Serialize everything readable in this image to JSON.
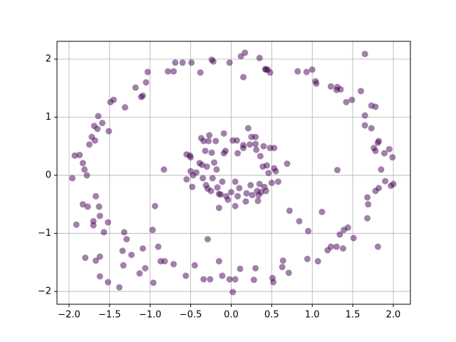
{
  "chart_data": {
    "type": "scatter",
    "color": "#440154",
    "opacity": 0.5,
    "grid": true,
    "xlim": [
      -2.149,
      2.211
    ],
    "ylim": [
      -2.22,
      2.307
    ],
    "xticks": [
      {
        "value": -2,
        "label": "−2.0"
      },
      {
        "value": -1.5,
        "label": "−1.5"
      },
      {
        "value": -1,
        "label": "−1.0"
      },
      {
        "value": -0.5,
        "label": "−0.5"
      },
      {
        "value": 0,
        "label": "0.0"
      },
      {
        "value": 0.5,
        "label": "0.5"
      },
      {
        "value": 1,
        "label": "1.0"
      },
      {
        "value": 1.5,
        "label": "1.5"
      },
      {
        "value": 2,
        "label": "2.0"
      }
    ],
    "yticks": [
      {
        "value": -2,
        "label": "−2"
      },
      {
        "value": -1,
        "label": "−1"
      },
      0,
      1,
      2
    ],
    "x": [
      -1.96,
      -1.93,
      -1.87,
      -1.91,
      -1.83,
      -1.81,
      -1.78,
      -1.83,
      -1.77,
      -1.8,
      -1.75,
      -1.72,
      -1.69,
      -1.65,
      -1.64,
      -1.68,
      -1.59,
      -1.51,
      -1.67,
      -1.63,
      -1.7,
      -1.7,
      -1.62,
      -1.57,
      -1.67,
      -1.62,
      -1.52,
      -1.62,
      -1.52,
      -1.49,
      -1.45,
      -1.31,
      -1.38,
      -1.32,
      -1.29,
      -1.34,
      -1.33,
      -1.23,
      -1.18,
      -1.11,
      -1.09,
      -1.13,
      -1.09,
      -1.06,
      -1.05,
      -1.03,
      -0.94,
      -0.97,
      -0.96,
      -0.9,
      -0.87,
      -0.82,
      -0.78,
      -0.71,
      -0.69,
      -0.71,
      -0.6,
      -0.56,
      -0.45,
      -0.49,
      -0.38,
      -0.34,
      -0.29,
      -0.26,
      -0.24,
      -0.22,
      -0.15,
      -0.11,
      -0.02,
      -0.02,
      0.05,
      0.02,
      0.12,
      0.17,
      0.15,
      0.11,
      0.28,
      0.3,
      0.35,
      0.42,
      0.45,
      0.48,
      0.43,
      0.51,
      0.52,
      0.63,
      0.64,
      0.71,
      0.72,
      0.82,
      0.84,
      0.93,
      0.94,
      0.95,
      1.0,
      1.04,
      1.05,
      1.07,
      1.12,
      1.19,
      1.23,
      1.23,
      1.3,
      1.31,
      1.31,
      1.3,
      1.35,
      1.34,
      1.38,
      1.39,
      1.42,
      1.44,
      1.49,
      1.51,
      1.6,
      1.65,
      1.65,
      1.65,
      1.68,
      1.69,
      1.68,
      1.73,
      1.73,
      1.78,
      1.76,
      1.78,
      1.78,
      1.82,
      1.82,
      1.81,
      1.81,
      1.85,
      1.89,
      1.9,
      1.95,
      1.99,
      1.97,
      2.0,
      -0.55,
      -0.51,
      -0.5,
      -0.55,
      -0.5,
      -0.48,
      -0.47,
      -0.43,
      -0.39,
      -0.37,
      -0.36,
      -0.34,
      -0.35,
      -0.32,
      -0.31,
      -0.3,
      -0.29,
      -0.28,
      -0.27,
      -0.25,
      -0.24,
      -0.23,
      -0.19,
      -0.17,
      -0.15,
      -0.15,
      -0.13,
      -0.11,
      -0.09,
      -0.07,
      -0.09,
      -0.06,
      -0.04,
      0.0,
      0.02,
      0.05,
      0.05,
      0.07,
      0.08,
      0.08,
      0.1,
      0.15,
      0.15,
      0.18,
      0.19,
      0.21,
      0.23,
      0.24,
      0.26,
      0.3,
      0.3,
      0.31,
      0.32,
      0.33,
      0.34,
      0.35,
      0.36,
      0.37,
      0.39,
      0.4,
      0.41,
      0.43,
      0.44,
      0.46,
      0.48,
      0.5,
      0.53,
      0.53,
      0.55,
      0.58,
      0.69,
      -0.83,
      -0.21,
      -0.18,
      0.25
    ],
    "values": [
      -0.05,
      0.34,
      0.35,
      -0.85,
      0.21,
      0.1,
      0.0,
      -0.5,
      -0.54,
      -1.42,
      0.53,
      0.66,
      0.85,
      0.8,
      1.02,
      0.6,
      0.9,
      0.76,
      -0.36,
      -0.54,
      -0.79,
      -0.86,
      -0.7,
      -0.98,
      -1.47,
      -1.4,
      -0.81,
      -1.74,
      -1.84,
      1.26,
      1.3,
      1.17,
      -1.93,
      -0.98,
      -1.1,
      -1.3,
      -1.55,
      -1.37,
      1.51,
      1.35,
      1.37,
      -1.69,
      -1.26,
      -1.6,
      1.6,
      1.78,
      -0.53,
      -0.94,
      -1.85,
      -1.23,
      -1.48,
      -1.48,
      1.79,
      1.79,
      1.94,
      -1.53,
      1.94,
      -1.73,
      -1.55,
      1.94,
      1.77,
      -1.79,
      -1.1,
      -1.79,
      1.99,
      1.96,
      -1.48,
      -1.73,
      1.94,
      -1.79,
      -1.79,
      -2.01,
      2.05,
      2.11,
      1.69,
      -1.61,
      -1.8,
      -1.6,
      2.02,
      1.83,
      1.82,
      1.77,
      1.82,
      -1.77,
      -1.84,
      -1.58,
      -1.47,
      -1.68,
      -0.61,
      1.79,
      -0.79,
      1.78,
      -1.44,
      -0.96,
      1.82,
      1.62,
      1.58,
      -1.48,
      -0.63,
      -1.29,
      1.53,
      -1.23,
      1.47,
      1.52,
      0.09,
      -1.23,
      1.48,
      -1.02,
      -1.26,
      -0.94,
      1.26,
      -0.9,
      1.3,
      -1.08,
      1.45,
      2.09,
      1.03,
      0.86,
      -0.38,
      -0.5,
      -0.74,
      0.81,
      1.2,
      1.18,
      0.47,
      0.42,
      -0.27,
      -0.22,
      0.59,
      0.56,
      -1.23,
      0.1,
      0.38,
      -0.1,
      0.45,
      0.31,
      -0.18,
      -0.15,
      0.36,
      0.34,
      0.31,
      -0.07,
      0.07,
      -0.2,
      0.0,
      0.05,
      0.21,
      0.64,
      0.18,
      0.59,
      -0.05,
      0.42,
      -0.17,
      0.15,
      -0.23,
      0.59,
      0.69,
      -0.27,
      0.39,
      -0.05,
      0.59,
      -0.21,
      -0.56,
      -0.32,
      -0.33,
      -0.11,
      0.38,
      0.42,
      0.72,
      -0.36,
      -0.42,
      -0.29,
      0.6,
      -0.53,
      -0.11,
      0.6,
      0.38,
      -0.36,
      -0.22,
      0.52,
      0.47,
      -0.45,
      -0.31,
      0.81,
      0.53,
      -0.17,
      -0.34,
      0.66,
      0.54,
      0.44,
      -0.27,
      -0.44,
      -0.34,
      -0.15,
      0.33,
      -0.29,
      0.15,
      0.5,
      -0.2,
      -0.27,
      0.17,
      0.04,
      0.47,
      -0.13,
      0.47,
      0.12,
      0.07,
      -0.11,
      0.2,
      0.1,
      0.22,
      0.1,
      0.66
    ]
  }
}
